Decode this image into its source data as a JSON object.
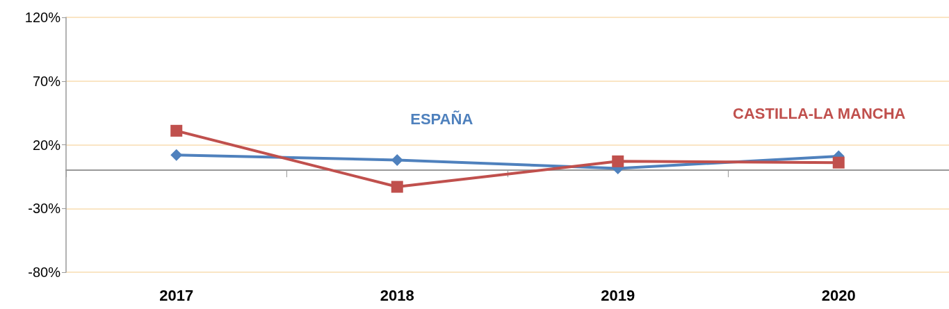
{
  "chart_data": {
    "type": "line",
    "categories": [
      "2017",
      "2018",
      "2019",
      "2020"
    ],
    "series": [
      {
        "name": "ESPAÑA",
        "color": "#4f81bd",
        "values": [
          12,
          8,
          1.5,
          11
        ],
        "marker": "diamond"
      },
      {
        "name": "CASTILLA-LA MANCHA",
        "color": "#c0504d",
        "values": [
          31,
          -13,
          7,
          6
        ],
        "marker": "square"
      }
    ],
    "ylim": [
      -80,
      120
    ],
    "yticks": [
      {
        "value": -80,
        "label": "-80%"
      },
      {
        "value": -30,
        "label": "-30%"
      },
      {
        "value": 20,
        "label": "20%"
      },
      {
        "value": 70,
        "label": "70%"
      },
      {
        "value": 120,
        "label": "120%"
      }
    ],
    "grid": "y",
    "legend": false,
    "line_style": "solid"
  }
}
